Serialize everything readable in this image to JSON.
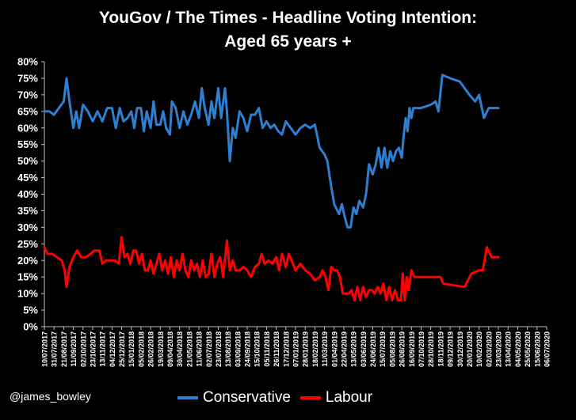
{
  "credit": "@james_bowley",
  "chart_data": {
    "type": "line",
    "title": [
      "YouGov / The Times - Headline Voting Intention:",
      "Aged 65 years +"
    ],
    "ylim": [
      0,
      80
    ],
    "yticks": [
      "80%",
      "75%",
      "70%",
      "65%",
      "60%",
      "55%",
      "50%",
      "45%",
      "40%",
      "35%",
      "30%",
      "25%",
      "20%",
      "15%",
      "10%",
      "5%",
      "0%"
    ],
    "ytick_values": [
      80,
      75,
      70,
      65,
      60,
      55,
      50,
      45,
      40,
      35,
      30,
      25,
      20,
      15,
      10,
      5,
      0
    ],
    "xtick_labels": [
      "10/07/2017",
      "31/07/2017",
      "21/08/2017",
      "11/09/2017",
      "02/10/2017",
      "23/10/2017",
      "13/11/2017",
      "04/12/2017",
      "25/12/2017",
      "15/01/2018",
      "05/02/2018",
      "26/02/2018",
      "19/03/2018",
      "09/04/2018",
      "30/04/2018",
      "21/05/2018",
      "11/06/2018",
      "02/07/2018",
      "23/07/2018",
      "13/08/2018",
      "03/09/2018",
      "24/09/2018",
      "15/10/2018",
      "05/11/2018",
      "26/11/2018",
      "17/12/2018",
      "07/01/2019",
      "28/01/2019",
      "18/02/2019",
      "11/03/2019",
      "01/04/2019",
      "22/04/2019",
      "13/05/2019",
      "03/06/2019",
      "24/06/2019",
      "15/07/2019",
      "05/08/2019",
      "26/08/2019",
      "16/09/2019",
      "07/10/2019",
      "28/10/2019",
      "18/11/2019",
      "09/12/2019",
      "30/12/2019",
      "20/01/2020",
      "10/02/2020",
      "02/03/2020",
      "23/03/2020",
      "13/04/2020",
      "04/05/2020",
      "25/05/2020",
      "15/06/2020",
      "06/07/2020"
    ],
    "grid": false,
    "legend": "bottom",
    "series": [
      {
        "name": "Conservative",
        "color": "#2f7fd0",
        "values": [
          {
            "x": 0.0,
            "y": 65
          },
          {
            "x": 0.5,
            "y": 65
          },
          {
            "x": 1.0,
            "y": 64
          },
          {
            "x": 1.5,
            "y": 66
          },
          {
            "x": 2.0,
            "y": 68
          },
          {
            "x": 2.3,
            "y": 75
          },
          {
            "x": 2.6,
            "y": 68
          },
          {
            "x": 3.0,
            "y": 60
          },
          {
            "x": 3.3,
            "y": 65
          },
          {
            "x": 3.6,
            "y": 60
          },
          {
            "x": 4.0,
            "y": 67
          },
          {
            "x": 4.5,
            "y": 65
          },
          {
            "x": 5.0,
            "y": 62
          },
          {
            "x": 5.5,
            "y": 65
          },
          {
            "x": 6.0,
            "y": 62
          },
          {
            "x": 6.5,
            "y": 66
          },
          {
            "x": 7.0,
            "y": 66
          },
          {
            "x": 7.4,
            "y": 60
          },
          {
            "x": 7.8,
            "y": 66
          },
          {
            "x": 8.2,
            "y": 62
          },
          {
            "x": 8.6,
            "y": 63
          },
          {
            "x": 9.0,
            "y": 65
          },
          {
            "x": 9.3,
            "y": 60
          },
          {
            "x": 9.6,
            "y": 66
          },
          {
            "x": 10.0,
            "y": 66
          },
          {
            "x": 10.3,
            "y": 59
          },
          {
            "x": 10.6,
            "y": 65
          },
          {
            "x": 11.0,
            "y": 60
          },
          {
            "x": 11.3,
            "y": 68
          },
          {
            "x": 11.6,
            "y": 61
          },
          {
            "x": 12.0,
            "y": 61
          },
          {
            "x": 12.3,
            "y": 65
          },
          {
            "x": 12.6,
            "y": 60
          },
          {
            "x": 13.0,
            "y": 58
          },
          {
            "x": 13.2,
            "y": 68
          },
          {
            "x": 13.6,
            "y": 66
          },
          {
            "x": 14.0,
            "y": 60
          },
          {
            "x": 14.4,
            "y": 65
          },
          {
            "x": 14.8,
            "y": 61
          },
          {
            "x": 15.2,
            "y": 64
          },
          {
            "x": 15.6,
            "y": 68
          },
          {
            "x": 16.0,
            "y": 63
          },
          {
            "x": 16.3,
            "y": 72
          },
          {
            "x": 16.6,
            "y": 66
          },
          {
            "x": 17.0,
            "y": 61
          },
          {
            "x": 17.3,
            "y": 68
          },
          {
            "x": 17.6,
            "y": 63
          },
          {
            "x": 18.0,
            "y": 72
          },
          {
            "x": 18.3,
            "y": 63
          },
          {
            "x": 18.7,
            "y": 72
          },
          {
            "x": 18.9,
            "y": 65
          },
          {
            "x": 19.2,
            "y": 50
          },
          {
            "x": 19.5,
            "y": 60
          },
          {
            "x": 19.8,
            "y": 57
          },
          {
            "x": 20.2,
            "y": 65
          },
          {
            "x": 20.6,
            "y": 63
          },
          {
            "x": 21.0,
            "y": 59
          },
          {
            "x": 21.4,
            "y": 64
          },
          {
            "x": 21.8,
            "y": 64
          },
          {
            "x": 22.2,
            "y": 66
          },
          {
            "x": 22.6,
            "y": 60
          },
          {
            "x": 23.0,
            "y": 62
          },
          {
            "x": 23.4,
            "y": 60
          },
          {
            "x": 23.8,
            "y": 61
          },
          {
            "x": 24.2,
            "y": 59
          },
          {
            "x": 24.6,
            "y": 58
          },
          {
            "x": 25.0,
            "y": 62
          },
          {
            "x": 25.5,
            "y": 60
          },
          {
            "x": 26.0,
            "y": 58
          },
          {
            "x": 26.5,
            "y": 60
          },
          {
            "x": 27.0,
            "y": 61
          },
          {
            "x": 27.5,
            "y": 60
          },
          {
            "x": 28.0,
            "y": 61
          },
          {
            "x": 28.5,
            "y": 54
          },
          {
            "x": 29.0,
            "y": 52
          },
          {
            "x": 29.3,
            "y": 50
          },
          {
            "x": 29.6,
            "y": 44
          },
          {
            "x": 30.0,
            "y": 37
          },
          {
            "x": 30.5,
            "y": 34
          },
          {
            "x": 30.8,
            "y": 37
          },
          {
            "x": 31.1,
            "y": 33
          },
          {
            "x": 31.4,
            "y": 30
          },
          {
            "x": 31.7,
            "y": 30
          },
          {
            "x": 32.0,
            "y": 36
          },
          {
            "x": 32.3,
            "y": 34
          },
          {
            "x": 32.6,
            "y": 38
          },
          {
            "x": 33.0,
            "y": 36
          },
          {
            "x": 33.3,
            "y": 40
          },
          {
            "x": 33.6,
            "y": 49
          },
          {
            "x": 34.0,
            "y": 46
          },
          {
            "x": 34.3,
            "y": 49
          },
          {
            "x": 34.6,
            "y": 54
          },
          {
            "x": 34.9,
            "y": 48
          },
          {
            "x": 35.2,
            "y": 54
          },
          {
            "x": 35.5,
            "y": 48
          },
          {
            "x": 35.8,
            "y": 53
          },
          {
            "x": 36.1,
            "y": 50
          },
          {
            "x": 36.4,
            "y": 53
          },
          {
            "x": 36.7,
            "y": 54
          },
          {
            "x": 37.0,
            "y": 51
          },
          {
            "x": 37.2,
            "y": 58
          },
          {
            "x": 37.4,
            "y": 63
          },
          {
            "x": 37.6,
            "y": 59
          },
          {
            "x": 37.8,
            "y": 66
          },
          {
            "x": 38.0,
            "y": 63
          },
          {
            "x": 38.2,
            "y": 66
          },
          {
            "x": 39.0,
            "y": 66
          },
          {
            "x": 40.0,
            "y": 67
          },
          {
            "x": 40.5,
            "y": 68
          },
          {
            "x": 40.8,
            "y": 65
          },
          {
            "x": 41.2,
            "y": 76
          },
          {
            "x": 42.0,
            "y": 75
          },
          {
            "x": 43.0,
            "y": 74
          },
          {
            "x": 44.0,
            "y": 70
          },
          {
            "x": 44.6,
            "y": 68
          },
          {
            "x": 45.0,
            "y": 70
          },
          {
            "x": 45.5,
            "y": 63
          },
          {
            "x": 46.0,
            "y": 66
          },
          {
            "x": 47.0,
            "y": 66
          }
        ]
      },
      {
        "name": "Labour",
        "color": "#ff0000",
        "values": [
          {
            "x": 0.0,
            "y": 24
          },
          {
            "x": 0.3,
            "y": 22
          },
          {
            "x": 0.8,
            "y": 22
          },
          {
            "x": 1.3,
            "y": 21
          },
          {
            "x": 1.8,
            "y": 20
          },
          {
            "x": 2.1,
            "y": 17
          },
          {
            "x": 2.3,
            "y": 12
          },
          {
            "x": 2.6,
            "y": 18
          },
          {
            "x": 3.0,
            "y": 21
          },
          {
            "x": 3.4,
            "y": 23
          },
          {
            "x": 3.8,
            "y": 21
          },
          {
            "x": 4.3,
            "y": 21
          },
          {
            "x": 4.8,
            "y": 22
          },
          {
            "x": 5.2,
            "y": 23
          },
          {
            "x": 5.7,
            "y": 23
          },
          {
            "x": 6.0,
            "y": 19
          },
          {
            "x": 6.4,
            "y": 20
          },
          {
            "x": 6.8,
            "y": 20
          },
          {
            "x": 7.3,
            "y": 20
          },
          {
            "x": 7.7,
            "y": 19
          },
          {
            "x": 8.0,
            "y": 27
          },
          {
            "x": 8.3,
            "y": 21
          },
          {
            "x": 8.6,
            "y": 22
          },
          {
            "x": 8.9,
            "y": 19
          },
          {
            "x": 9.2,
            "y": 23
          },
          {
            "x": 9.5,
            "y": 23
          },
          {
            "x": 9.8,
            "y": 19
          },
          {
            "x": 10.1,
            "y": 22
          },
          {
            "x": 10.4,
            "y": 17
          },
          {
            "x": 10.7,
            "y": 17
          },
          {
            "x": 11.0,
            "y": 20
          },
          {
            "x": 11.3,
            "y": 16
          },
          {
            "x": 11.6,
            "y": 19
          },
          {
            "x": 11.9,
            "y": 22
          },
          {
            "x": 12.2,
            "y": 17
          },
          {
            "x": 12.5,
            "y": 20
          },
          {
            "x": 12.8,
            "y": 16
          },
          {
            "x": 13.1,
            "y": 21
          },
          {
            "x": 13.4,
            "y": 15
          },
          {
            "x": 13.7,
            "y": 20
          },
          {
            "x": 14.0,
            "y": 17
          },
          {
            "x": 14.3,
            "y": 22
          },
          {
            "x": 14.6,
            "y": 17
          },
          {
            "x": 14.9,
            "y": 15
          },
          {
            "x": 15.2,
            "y": 20
          },
          {
            "x": 15.5,
            "y": 17
          },
          {
            "x": 15.8,
            "y": 19
          },
          {
            "x": 16.1,
            "y": 15
          },
          {
            "x": 16.4,
            "y": 20
          },
          {
            "x": 16.7,
            "y": 15
          },
          {
            "x": 17.0,
            "y": 16
          },
          {
            "x": 17.3,
            "y": 22
          },
          {
            "x": 17.6,
            "y": 15
          },
          {
            "x": 17.9,
            "y": 19
          },
          {
            "x": 18.2,
            "y": 21
          },
          {
            "x": 18.5,
            "y": 15
          },
          {
            "x": 18.9,
            "y": 26
          },
          {
            "x": 19.2,
            "y": 17
          },
          {
            "x": 19.5,
            "y": 20
          },
          {
            "x": 19.8,
            "y": 17
          },
          {
            "x": 20.2,
            "y": 17
          },
          {
            "x": 20.6,
            "y": 18
          },
          {
            "x": 21.0,
            "y": 17
          },
          {
            "x": 21.4,
            "y": 15
          },
          {
            "x": 21.8,
            "y": 18
          },
          {
            "x": 22.2,
            "y": 19
          },
          {
            "x": 22.5,
            "y": 22
          },
          {
            "x": 22.8,
            "y": 19
          },
          {
            "x": 23.2,
            "y": 20
          },
          {
            "x": 23.6,
            "y": 19
          },
          {
            "x": 24.0,
            "y": 21
          },
          {
            "x": 24.3,
            "y": 17
          },
          {
            "x": 24.6,
            "y": 22
          },
          {
            "x": 25.0,
            "y": 18
          },
          {
            "x": 25.3,
            "y": 22
          },
          {
            "x": 25.6,
            "y": 20
          },
          {
            "x": 26.0,
            "y": 17
          },
          {
            "x": 26.5,
            "y": 19
          },
          {
            "x": 27.0,
            "y": 17
          },
          {
            "x": 27.5,
            "y": 16
          },
          {
            "x": 28.0,
            "y": 14
          },
          {
            "x": 28.5,
            "y": 15
          },
          {
            "x": 28.8,
            "y": 17
          },
          {
            "x": 29.1,
            "y": 15
          },
          {
            "x": 29.4,
            "y": 11
          },
          {
            "x": 29.7,
            "y": 18
          },
          {
            "x": 30.0,
            "y": 17
          },
          {
            "x": 30.3,
            "y": 17
          },
          {
            "x": 30.6,
            "y": 15
          },
          {
            "x": 30.9,
            "y": 10
          },
          {
            "x": 31.2,
            "y": 10
          },
          {
            "x": 31.5,
            "y": 10
          },
          {
            "x": 31.8,
            "y": 11
          },
          {
            "x": 32.1,
            "y": 8
          },
          {
            "x": 32.4,
            "y": 12
          },
          {
            "x": 32.7,
            "y": 8
          },
          {
            "x": 33.0,
            "y": 12
          },
          {
            "x": 33.3,
            "y": 9
          },
          {
            "x": 33.6,
            "y": 11
          },
          {
            "x": 33.9,
            "y": 11
          },
          {
            "x": 34.2,
            "y": 10
          },
          {
            "x": 34.5,
            "y": 12
          },
          {
            "x": 34.8,
            "y": 10
          },
          {
            "x": 35.1,
            "y": 13
          },
          {
            "x": 35.4,
            "y": 8
          },
          {
            "x": 35.7,
            "y": 12
          },
          {
            "x": 36.0,
            "y": 8
          },
          {
            "x": 36.3,
            "y": 11
          },
          {
            "x": 36.6,
            "y": 8
          },
          {
            "x": 36.9,
            "y": 8
          },
          {
            "x": 37.1,
            "y": 16
          },
          {
            "x": 37.3,
            "y": 8
          },
          {
            "x": 37.5,
            "y": 15
          },
          {
            "x": 37.7,
            "y": 11
          },
          {
            "x": 38.0,
            "y": 17
          },
          {
            "x": 38.3,
            "y": 15
          },
          {
            "x": 39.0,
            "y": 15
          },
          {
            "x": 40.0,
            "y": 15
          },
          {
            "x": 41.0,
            "y": 15
          },
          {
            "x": 41.3,
            "y": 13
          },
          {
            "x": 43.5,
            "y": 12
          },
          {
            "x": 44.2,
            "y": 16
          },
          {
            "x": 45.0,
            "y": 17
          },
          {
            "x": 45.4,
            "y": 17
          },
          {
            "x": 45.8,
            "y": 24
          },
          {
            "x": 46.3,
            "y": 21
          },
          {
            "x": 47.0,
            "y": 21
          }
        ]
      }
    ]
  }
}
